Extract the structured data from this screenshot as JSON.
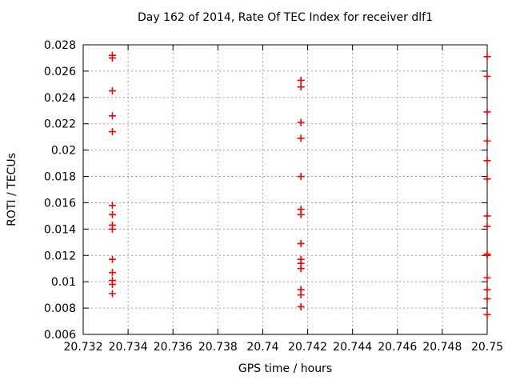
{
  "chart_data": {
    "type": "scatter",
    "title": "Day 162 of 2014, Rate Of TEC Index for receiver dlf1",
    "xlabel": "GPS time / hours",
    "ylabel": "ROTI / TECUs",
    "xlim": [
      20.732,
      20.75
    ],
    "ylim": [
      0.006,
      0.028
    ],
    "x_tick_labels": [
      "20.732",
      "20.734",
      "20.736",
      "20.738",
      "20.74",
      "20.742",
      "20.744",
      "20.746",
      "20.748",
      "20.75"
    ],
    "y_tick_labels": [
      "0.006",
      "0.008",
      "0.01",
      "0.012",
      "0.014",
      "0.016",
      "0.018",
      "0.02",
      "0.022",
      "0.024",
      "0.026",
      "0.028"
    ],
    "grid": true,
    "grid_style": "dotted",
    "grid_color": "#a0a0a0",
    "marker": "plus",
    "marker_color": "#ff0000",
    "legend": "none",
    "series": [
      {
        "name": "ROTI",
        "points": [
          [
            20.7333,
            0.0272
          ],
          [
            20.7333,
            0.027
          ],
          [
            20.7333,
            0.0245
          ],
          [
            20.7333,
            0.0226
          ],
          [
            20.7333,
            0.0214
          ],
          [
            20.7333,
            0.0158
          ],
          [
            20.7333,
            0.0151
          ],
          [
            20.7333,
            0.0143
          ],
          [
            20.7333,
            0.014
          ],
          [
            20.7333,
            0.0117
          ],
          [
            20.7333,
            0.0107
          ],
          [
            20.7333,
            0.0101
          ],
          [
            20.7333,
            0.0098
          ],
          [
            20.7333,
            0.0091
          ],
          [
            20.7417,
            0.0253
          ],
          [
            20.7417,
            0.0248
          ],
          [
            20.7417,
            0.0221
          ],
          [
            20.7417,
            0.0209
          ],
          [
            20.7417,
            0.018
          ],
          [
            20.7417,
            0.0155
          ],
          [
            20.7417,
            0.0151
          ],
          [
            20.7417,
            0.0129
          ],
          [
            20.7417,
            0.0117
          ],
          [
            20.7417,
            0.0114
          ],
          [
            20.7417,
            0.011
          ],
          [
            20.7417,
            0.0094
          ],
          [
            20.7417,
            0.009
          ],
          [
            20.7417,
            0.0081
          ],
          [
            20.75,
            0.0271
          ],
          [
            20.75,
            0.0256
          ],
          [
            20.75,
            0.0229
          ],
          [
            20.75,
            0.0207
          ],
          [
            20.75,
            0.0192
          ],
          [
            20.75,
            0.0178
          ],
          [
            20.75,
            0.015
          ],
          [
            20.75,
            0.0142
          ],
          [
            20.75,
            0.0121
          ],
          [
            20.75,
            0.012
          ],
          [
            20.75,
            0.0103
          ],
          [
            20.75,
            0.0094
          ],
          [
            20.75,
            0.0087
          ],
          [
            20.75,
            0.0075
          ]
        ]
      }
    ]
  }
}
